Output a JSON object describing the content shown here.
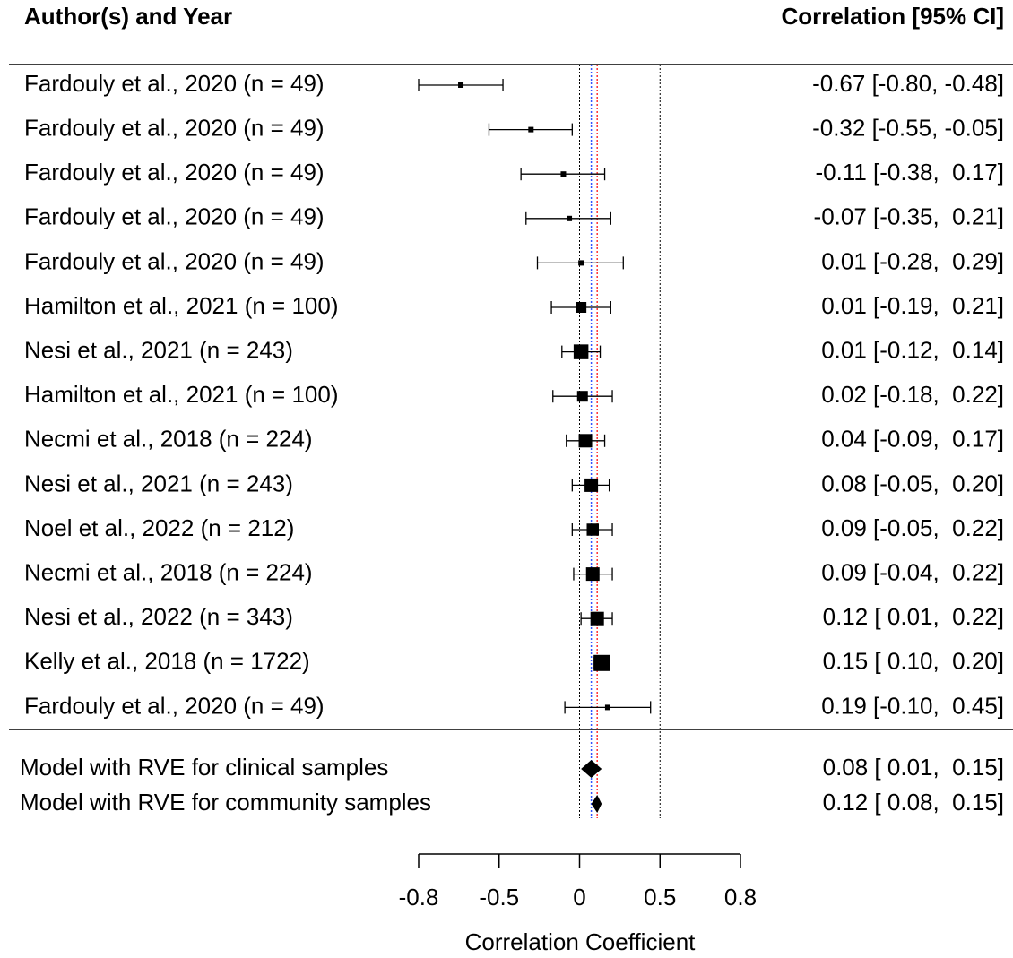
{
  "chart_data": {
    "type": "forest",
    "column_headers": [
      "Author(s) and Year",
      "Correlation [95% CI]"
    ],
    "xlabel": "Correlation Coefficient",
    "xscale": "fisher-z",
    "xlim": [
      -0.8,
      0.8
    ],
    "xticks": [
      -0.8,
      -0.5,
      0,
      0.5,
      0.8
    ],
    "reference_lines": [
      0,
      0.5
    ],
    "categories": [
      "Fardouly et al., 2020 (n = 49)",
      "Fardouly et al., 2020 (n = 49)",
      "Fardouly et al., 2020 (n = 49)",
      "Fardouly et al., 2020 (n = 49)",
      "Fardouly et al., 2020 (n = 49)",
      "Hamilton et al., 2021 (n = 100)",
      "Nesi et al., 2021 (n = 243)",
      "Hamilton et al., 2021 (n = 100)",
      "Necmi et al., 2018 (n = 224)",
      "Nesi et al., 2021 (n = 243)",
      "Noel et al., 2022 (n = 212)",
      "Necmi et al., 2018 (n = 224)",
      "Nesi et al., 2022 (n = 343)",
      "Kelly et al., 2018 (n = 1722)",
      "Fardouly et al., 2020 (n = 49)"
    ],
    "values": [
      -0.67,
      -0.32,
      -0.11,
      -0.07,
      0.01,
      0.01,
      0.01,
      0.02,
      0.04,
      0.08,
      0.09,
      0.09,
      0.12,
      0.15,
      0.19
    ],
    "lower": [
      -0.8,
      -0.55,
      -0.38,
      -0.35,
      -0.28,
      -0.19,
      -0.12,
      -0.18,
      -0.09,
      -0.05,
      -0.05,
      -0.04,
      0.01,
      0.1,
      -0.1
    ],
    "upper": [
      -0.48,
      -0.05,
      0.17,
      0.21,
      0.29,
      0.21,
      0.14,
      0.22,
      0.17,
      0.2,
      0.22,
      0.22,
      0.22,
      0.2,
      0.45
    ],
    "weights": [
      2,
      2,
      2,
      2,
      2,
      4,
      5.5,
      4,
      5,
      5,
      4.5,
      5,
      5,
      6,
      2
    ],
    "value_labels": [
      "-0.67 [-0.80, -0.48]",
      "-0.32 [-0.55, -0.05]",
      "-0.11 [-0.38,  0.17]",
      "-0.07 [-0.35,  0.21]",
      "0.01 [-0.28,  0.29]",
      "0.01 [-0.19,  0.21]",
      "0.01 [-0.12,  0.14]",
      "0.02 [-0.18,  0.22]",
      "0.04 [-0.09,  0.17]",
      "0.08 [-0.05,  0.20]",
      "0.09 [-0.05,  0.22]",
      "0.09 [-0.04,  0.22]",
      "0.12 [ 0.01,  0.22]",
      "0.15 [ 0.10,  0.20]",
      "0.19 [-0.10,  0.45]"
    ],
    "summary": {
      "categories": [
        "Model with RVE for clinical samples",
        "Model with RVE for community samples"
      ],
      "values": [
        0.08,
        0.12
      ],
      "lower": [
        0.01,
        0.08
      ],
      "upper": [
        0.15,
        0.15
      ],
      "value_labels": [
        "0.08 [ 0.01,  0.15]",
        "0.12 [ 0.08,  0.15]"
      ],
      "line_colors": [
        "#3355ff",
        "#ff3333"
      ]
    }
  }
}
